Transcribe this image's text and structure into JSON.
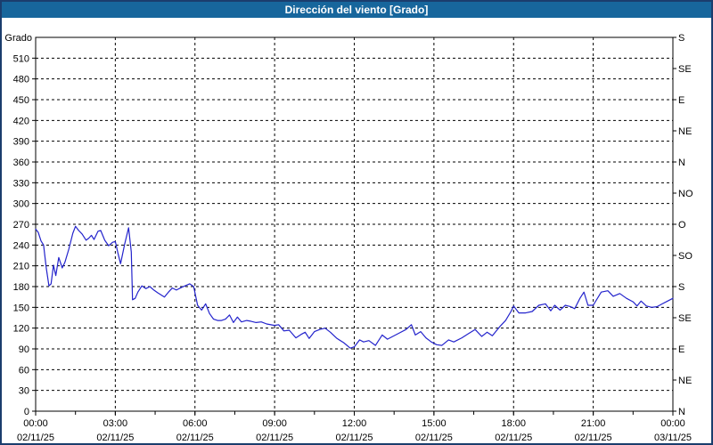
{
  "window": {
    "title": "Dirección del viento [Grado]"
  },
  "colors": {
    "titlebar_bg": "#17669c",
    "titlebar_text": "#ffffff",
    "frame_border": "#1b3d6d",
    "plot_background": "#ffffff",
    "axis_color": "#000000",
    "gridline_color": "#000000",
    "line_color": "#2323cc"
  },
  "chart_data": {
    "type": "line",
    "title": "Dirección del viento [Grado]",
    "ylabel": "Grado",
    "ylim": [
      0,
      540
    ],
    "xlim_hours": [
      0,
      24
    ],
    "grid": "dashed; horizontal every 30 deg, vertical every 3 h",
    "legend": "none",
    "y_left_ticks": [
      0,
      30,
      60,
      90,
      120,
      150,
      180,
      210,
      240,
      270,
      300,
      330,
      360,
      390,
      420,
      450,
      480,
      510
    ],
    "y_right_labels": [
      {
        "deg": 540,
        "label": "S"
      },
      {
        "deg": 495,
        "label": "SE"
      },
      {
        "deg": 450,
        "label": "E"
      },
      {
        "deg": 405,
        "label": "NE"
      },
      {
        "deg": 360,
        "label": "N"
      },
      {
        "deg": 315,
        "label": "NO"
      },
      {
        "deg": 270,
        "label": "O"
      },
      {
        "deg": 225,
        "label": "SO"
      },
      {
        "deg": 180,
        "label": "S"
      },
      {
        "deg": 135,
        "label": "SE"
      },
      {
        "deg": 90,
        "label": "E"
      },
      {
        "deg": 45,
        "label": "NE"
      },
      {
        "deg": 0,
        "label": "N"
      }
    ],
    "x_ticks": [
      {
        "hour": 0,
        "time": "00:00",
        "date": "02/11/25"
      },
      {
        "hour": 3,
        "time": "03:00",
        "date": "02/11/25"
      },
      {
        "hour": 6,
        "time": "06:00",
        "date": "02/11/25"
      },
      {
        "hour": 9,
        "time": "09:00",
        "date": "02/11/25"
      },
      {
        "hour": 12,
        "time": "12:00",
        "date": "02/11/25"
      },
      {
        "hour": 15,
        "time": "15:00",
        "date": "02/11/25"
      },
      {
        "hour": 18,
        "time": "18:00",
        "date": "02/11/25"
      },
      {
        "hour": 21,
        "time": "21:00",
        "date": "02/11/25"
      },
      {
        "hour": 24,
        "time": "00:00",
        "date": "03/11/25"
      }
    ],
    "x_minor_tick_step_hours": 1.5,
    "series": [
      {
        "name": "Dirección del viento",
        "color": "#2323cc",
        "points_hour_deg": [
          [
            0.0,
            263
          ],
          [
            0.1,
            258
          ],
          [
            0.2,
            246
          ],
          [
            0.3,
            240
          ],
          [
            0.4,
            207
          ],
          [
            0.5,
            181
          ],
          [
            0.58,
            184
          ],
          [
            0.67,
            211
          ],
          [
            0.76,
            196
          ],
          [
            0.87,
            222
          ],
          [
            1.0,
            207
          ],
          [
            1.1,
            215
          ],
          [
            1.25,
            234
          ],
          [
            1.4,
            257
          ],
          [
            1.5,
            267
          ],
          [
            1.62,
            261
          ],
          [
            1.75,
            256
          ],
          [
            1.9,
            247
          ],
          [
            2.0,
            250
          ],
          [
            2.1,
            254
          ],
          [
            2.2,
            248
          ],
          [
            2.35,
            260
          ],
          [
            2.45,
            261
          ],
          [
            2.6,
            247
          ],
          [
            2.75,
            239
          ],
          [
            2.9,
            244
          ],
          [
            3.0,
            245
          ],
          [
            3.1,
            228
          ],
          [
            3.2,
            213
          ],
          [
            3.35,
            241
          ],
          [
            3.5,
            265
          ],
          [
            3.6,
            230
          ],
          [
            3.65,
            161
          ],
          [
            3.75,
            163
          ],
          [
            3.85,
            172
          ],
          [
            4.0,
            181
          ],
          [
            4.15,
            177
          ],
          [
            4.3,
            180
          ],
          [
            4.45,
            175
          ],
          [
            4.6,
            171
          ],
          [
            4.85,
            165
          ],
          [
            5.0,
            172
          ],
          [
            5.15,
            178
          ],
          [
            5.3,
            175
          ],
          [
            5.5,
            179
          ],
          [
            5.8,
            184
          ],
          [
            5.95,
            180
          ],
          [
            6.1,
            153
          ],
          [
            6.25,
            146
          ],
          [
            6.4,
            155
          ],
          [
            6.55,
            141
          ],
          [
            6.7,
            133
          ],
          [
            6.85,
            131
          ],
          [
            7.0,
            131
          ],
          [
            7.15,
            133
          ],
          [
            7.3,
            139
          ],
          [
            7.45,
            128
          ],
          [
            7.6,
            136
          ],
          [
            7.75,
            129
          ],
          [
            7.95,
            131
          ],
          [
            8.1,
            130
          ],
          [
            8.3,
            128
          ],
          [
            8.5,
            129
          ],
          [
            8.7,
            126
          ],
          [
            9.0,
            124
          ],
          [
            9.15,
            125
          ],
          [
            9.35,
            116
          ],
          [
            9.55,
            117
          ],
          [
            9.8,
            106
          ],
          [
            10.0,
            111
          ],
          [
            10.15,
            114
          ],
          [
            10.3,
            105
          ],
          [
            10.5,
            115
          ],
          [
            10.7,
            118
          ],
          [
            10.9,
            120
          ],
          [
            11.1,
            114
          ],
          [
            11.35,
            105
          ],
          [
            11.6,
            99
          ],
          [
            11.85,
            91
          ],
          [
            12.0,
            93
          ],
          [
            12.2,
            103
          ],
          [
            12.35,
            100
          ],
          [
            12.55,
            102
          ],
          [
            12.8,
            95
          ],
          [
            13.05,
            110
          ],
          [
            13.25,
            104
          ],
          [
            13.45,
            108
          ],
          [
            13.7,
            113
          ],
          [
            13.95,
            118
          ],
          [
            14.15,
            125
          ],
          [
            14.3,
            110
          ],
          [
            14.5,
            115
          ],
          [
            14.7,
            106
          ],
          [
            14.9,
            100
          ],
          [
            15.1,
            96
          ],
          [
            15.3,
            95
          ],
          [
            15.55,
            103
          ],
          [
            15.75,
            100
          ],
          [
            16.05,
            106
          ],
          [
            16.3,
            112
          ],
          [
            16.55,
            118
          ],
          [
            16.8,
            108
          ],
          [
            17.0,
            114
          ],
          [
            17.2,
            109
          ],
          [
            17.5,
            123
          ],
          [
            17.7,
            131
          ],
          [
            17.9,
            144
          ],
          [
            18.0,
            152
          ],
          [
            18.2,
            142
          ],
          [
            18.45,
            142
          ],
          [
            18.7,
            144
          ],
          [
            18.95,
            153
          ],
          [
            19.2,
            155
          ],
          [
            19.4,
            145
          ],
          [
            19.55,
            153
          ],
          [
            19.75,
            146
          ],
          [
            19.95,
            153
          ],
          [
            20.15,
            151
          ],
          [
            20.3,
            148
          ],
          [
            20.5,
            163
          ],
          [
            20.65,
            172
          ],
          [
            20.8,
            153
          ],
          [
            21.0,
            153
          ],
          [
            21.3,
            172
          ],
          [
            21.55,
            174
          ],
          [
            21.75,
            166
          ],
          [
            22.0,
            170
          ],
          [
            22.25,
            163
          ],
          [
            22.5,
            158
          ],
          [
            22.65,
            152
          ],
          [
            22.8,
            159
          ],
          [
            23.0,
            152
          ],
          [
            23.2,
            150
          ],
          [
            23.4,
            151
          ],
          [
            23.6,
            155
          ],
          [
            23.8,
            159
          ],
          [
            24.0,
            163
          ]
        ]
      }
    ]
  }
}
